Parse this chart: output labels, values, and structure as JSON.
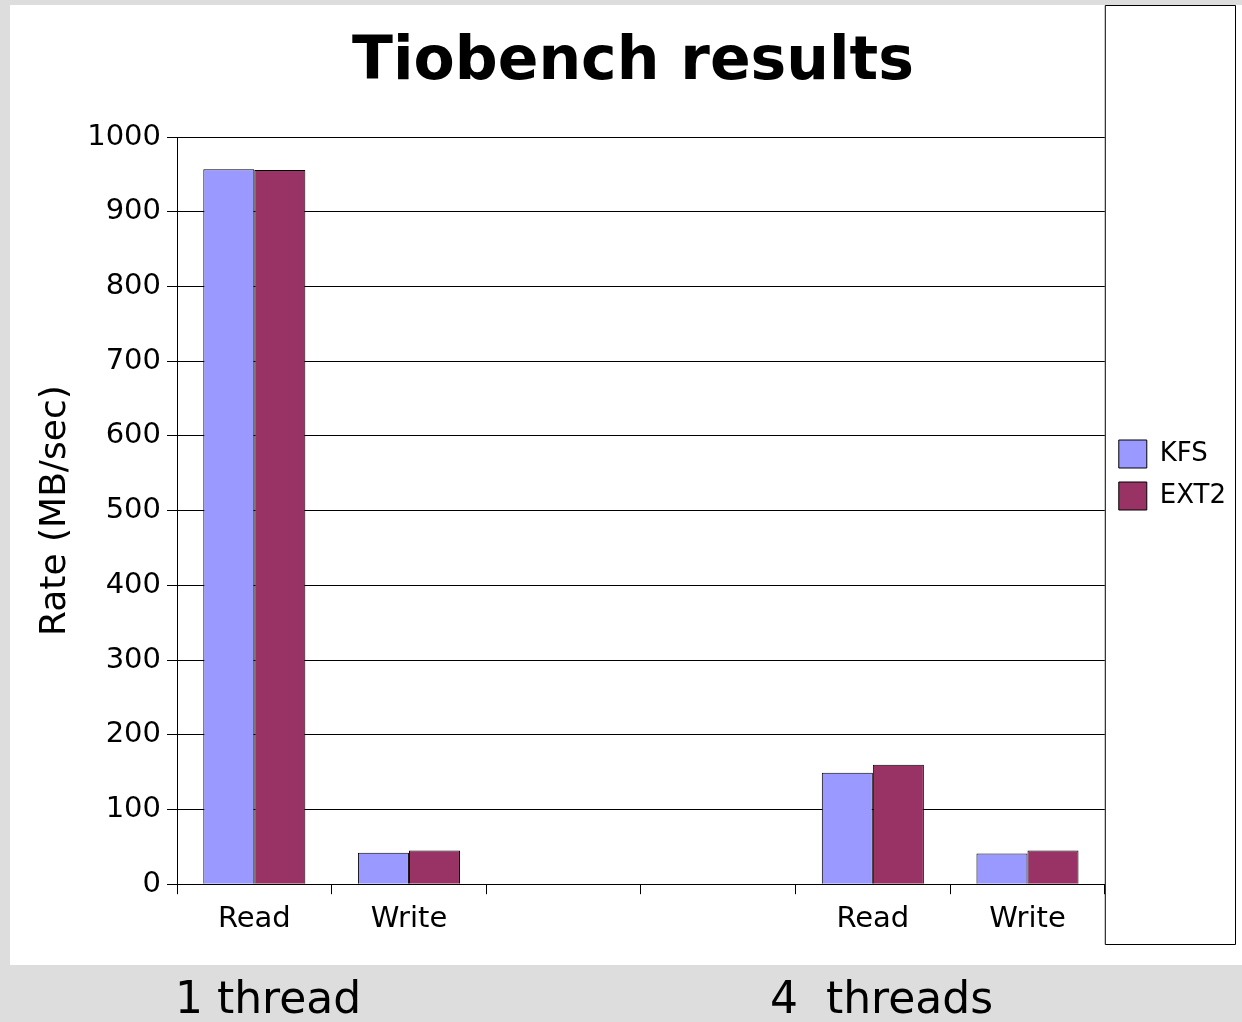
{
  "chart_data": {
    "type": "bar",
    "title": "Tiobench results",
    "ylabel": "Rate (MB/sec)",
    "categories": [
      "Read",
      "Write",
      null,
      null,
      "Read",
      "Write"
    ],
    "series": [
      {
        "name": "KFS",
        "color": "#9999ff",
        "values": [
          957,
          42,
          null,
          null,
          149,
          41
        ]
      },
      {
        "name": "EXT2",
        "color": "#993366",
        "values": [
          956,
          45,
          null,
          null,
          160,
          45
        ]
      }
    ],
    "ylim": [
      0,
      1000
    ],
    "yticks": [
      0,
      100,
      200,
      300,
      400,
      500,
      600,
      700,
      800,
      900,
      1000
    ],
    "grid": "y",
    "legend": "right",
    "annotations": [
      "1 thread",
      "4  threads"
    ]
  }
}
